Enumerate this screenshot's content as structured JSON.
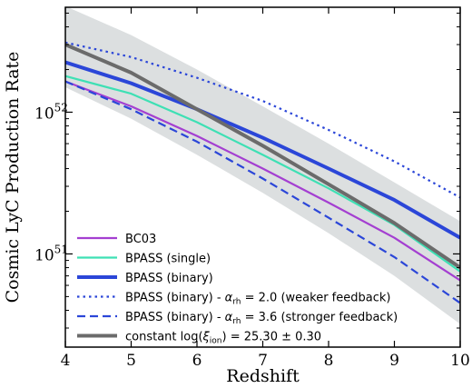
{
  "chart_data": {
    "type": "line",
    "xlabel": "Redshift",
    "ylabel": "Cosmic LyC Production Rate",
    "xlim": [
      4,
      10
    ],
    "ylim": [
      2.2e+50,
      5.5e+52
    ],
    "yscale": "log",
    "x_ticks": [
      4,
      5,
      6,
      7,
      8,
      9,
      10
    ],
    "y_ticks": [
      {
        "value": 1e+51,
        "mantissa": "10",
        "exp": "51"
      },
      {
        "value": 1e+52,
        "mantissa": "10",
        "exp": "52"
      }
    ],
    "legend_position": "lower-left",
    "band": {
      "x": [
        4,
        5,
        6,
        7,
        8,
        9,
        10
      ],
      "lower": [
        1.5e+52,
        9e+51,
        5e+51,
        2.7e+51,
        1.4e+51,
        7e+50,
        3.2e+50
      ],
      "upper": [
        5.6e+52,
        3.5e+52,
        2e+52,
        1.1e+52,
        6e+51,
        3.2e+51,
        1.7e+51
      ],
      "color": "#dcdfe0"
    },
    "series": [
      {
        "name": "BC03",
        "legend": [
          "BC03"
        ],
        "color": "#a43fd1",
        "width": 2.2,
        "dash": "",
        "x": [
          4,
          5,
          6,
          7,
          8,
          9,
          10
        ],
        "y": [
          1.65e+52,
          1.1e+52,
          6.8e+51,
          4e+51,
          2.3e+51,
          1.3e+51,
          6.5e+50
        ]
      },
      {
        "name": "BPASS (single)",
        "legend": [
          "BPASS (single)"
        ],
        "color": "#3ee0b4",
        "width": 2.2,
        "dash": "",
        "x": [
          4,
          5,
          6,
          7,
          8,
          9,
          10
        ],
        "y": [
          1.8e+52,
          1.35e+52,
          8.5e+51,
          5e+51,
          2.9e+51,
          1.6e+51,
          7.5e+50
        ]
      },
      {
        "name": "BPASS (binary)",
        "legend": [
          "BPASS (binary)"
        ],
        "color": "#2b46d8",
        "width": 4.0,
        "dash": "",
        "x": [
          4,
          5,
          6,
          7,
          8,
          9,
          10
        ],
        "y": [
          2.25e+52,
          1.6e+52,
          1.05e+52,
          6.6e+51,
          4e+51,
          2.4e+51,
          1.3e+51
        ]
      },
      {
        "name": "BPASS (binary) - αrh = 2.0 (weaker feedback)",
        "legend": [
          "BPASS (binary) - ",
          "α",
          "rh",
          " = 2.0 (weaker feedback)"
        ],
        "color": "#2b46d8",
        "width": 2.2,
        "dash": "2.5,4",
        "x": [
          4,
          5,
          6,
          7,
          8,
          9,
          10
        ],
        "y": [
          3.1e+52,
          2.45e+52,
          1.75e+52,
          1.2e+52,
          7.5e+51,
          4.5e+51,
          2.5e+51
        ]
      },
      {
        "name": "BPASS (binary) - αrh = 3.6 (stronger feedback)",
        "legend": [
          "BPASS (binary) - ",
          "α",
          "rh",
          " = 3.6 (stronger feedback)"
        ],
        "color": "#2b46d8",
        "width": 2.2,
        "dash": "9,5",
        "x": [
          4,
          5,
          6,
          7,
          8,
          9,
          10
        ],
        "y": [
          1.65e+52,
          1.05e+52,
          6.2e+51,
          3.4e+51,
          1.8e+51,
          9.5e+50,
          4.5e+50
        ]
      },
      {
        "name": "constant log(ξion) = 25.30 ± 0.30",
        "legend": [
          "constant log(",
          "ξ",
          "ion",
          ") = 25.30 ± 0.30"
        ],
        "color": "#6b6b6b",
        "width": 4.0,
        "dash": "",
        "x": [
          4,
          5,
          6,
          7,
          8,
          9,
          10
        ],
        "y": [
          3e+52,
          1.9e+52,
          1.05e+52,
          5.8e+51,
          3.1e+51,
          1.65e+51,
          8e+50
        ]
      }
    ]
  }
}
